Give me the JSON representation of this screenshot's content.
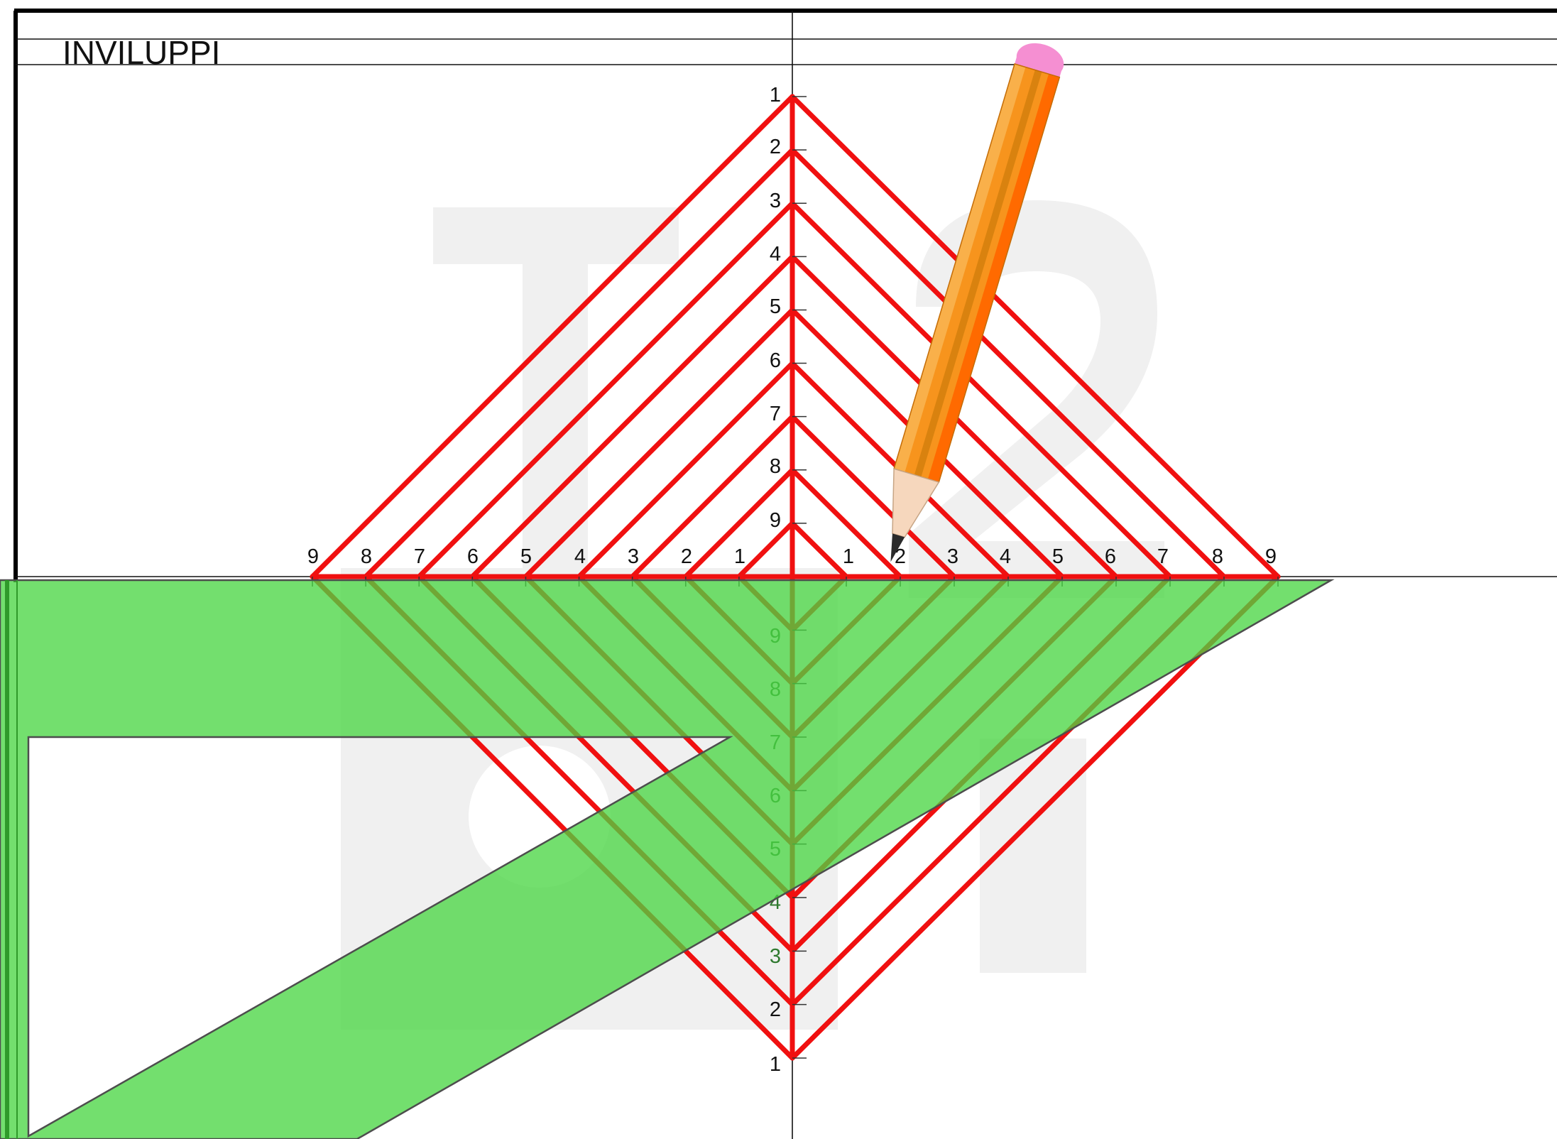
{
  "title": "INVILUPPI",
  "axis_labels": {
    "horizontal": [
      "9",
      "8",
      "7",
      "6",
      "5",
      "4",
      "3",
      "2",
      "1",
      "1",
      "2",
      "3",
      "4",
      "5",
      "6",
      "7",
      "8",
      "9"
    ],
    "vertical_upper": [
      "1",
      "2",
      "3",
      "4",
      "5",
      "6",
      "7",
      "8",
      "9"
    ],
    "vertical_lower": [
      "9",
      "8",
      "7",
      "6",
      "5",
      "4",
      "3",
      "2",
      "1"
    ]
  },
  "divisions": 9,
  "colors": {
    "thread": "#f01010",
    "set_square": "#49d642",
    "pencil_body": "#f7941d",
    "pencil_eraser": "#f58fd2",
    "watermark": "#f0f0f0"
  },
  "tools": {
    "set_square": "set-square-icon",
    "pencil": "pencil-icon"
  }
}
